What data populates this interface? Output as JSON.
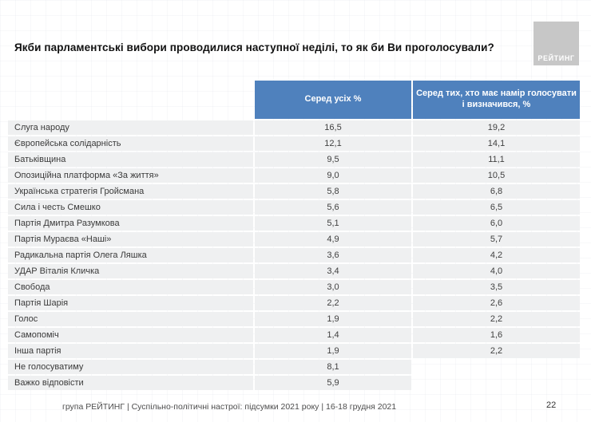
{
  "slide": {
    "logo_text": "РЕЙТИНГ",
    "footer": "група РЕЙТИНГ | Суспільно-політичні настрої: підсумки 2021 року | 16-18 грудня 2021",
    "page_number": "22"
  },
  "colors": {
    "header_blue": "#4f81bd",
    "row_gray": "#eff0f1",
    "logo_gray": "#c7c7c7"
  },
  "chart_data": {
    "type": "table",
    "title": "Якби парламентські вибори проводилися наступної неділі, то як би Ви проголосували?",
    "columns": [
      "Серед усіх %",
      "Серед тих, хто має намір голосувати і визначився, %"
    ],
    "value_format": "comma-decimal percent",
    "rows": [
      {
        "label": "Слуга народу",
        "all": "16,5",
        "decided": "19,2"
      },
      {
        "label": "Європейська солідарність",
        "all": "12,1",
        "decided": "14,1"
      },
      {
        "label": "Батьківщина",
        "all": "9,5",
        "decided": "11,1"
      },
      {
        "label": "Опозиційна платформа «За життя»",
        "all": "9,0",
        "decided": "10,5"
      },
      {
        "label": "Українська стратегія Гройсмана",
        "all": "5,8",
        "decided": "6,8"
      },
      {
        "label": "Сила і честь Смешко",
        "all": "5,6",
        "decided": "6,5"
      },
      {
        "label": "Партія Дмитра Разумкова",
        "all": "5,1",
        "decided": "6,0"
      },
      {
        "label": "Партія Мураєва «Наші»",
        "all": "4,9",
        "decided": "5,7"
      },
      {
        "label": "Радикальна партія Олега Ляшка",
        "all": "3,6",
        "decided": "4,2"
      },
      {
        "label": "УДАР Віталія Кличка",
        "all": "3,4",
        "decided": "4,0"
      },
      {
        "label": "Свобода",
        "all": "3,0",
        "decided": "3,5"
      },
      {
        "label": "Партія Шарія",
        "all": "2,2",
        "decided": "2,6"
      },
      {
        "label": "Голос",
        "all": "1,9",
        "decided": "2,2"
      },
      {
        "label": "Самопоміч",
        "all": "1,4",
        "decided": "1,6"
      },
      {
        "label": "Інша партія",
        "all": "1,9",
        "decided": "2,2"
      },
      {
        "label": "Не голосуватиму",
        "all": "8,1",
        "decided": null
      },
      {
        "label": "Важко відповісти",
        "all": "5,9",
        "decided": null
      }
    ]
  }
}
